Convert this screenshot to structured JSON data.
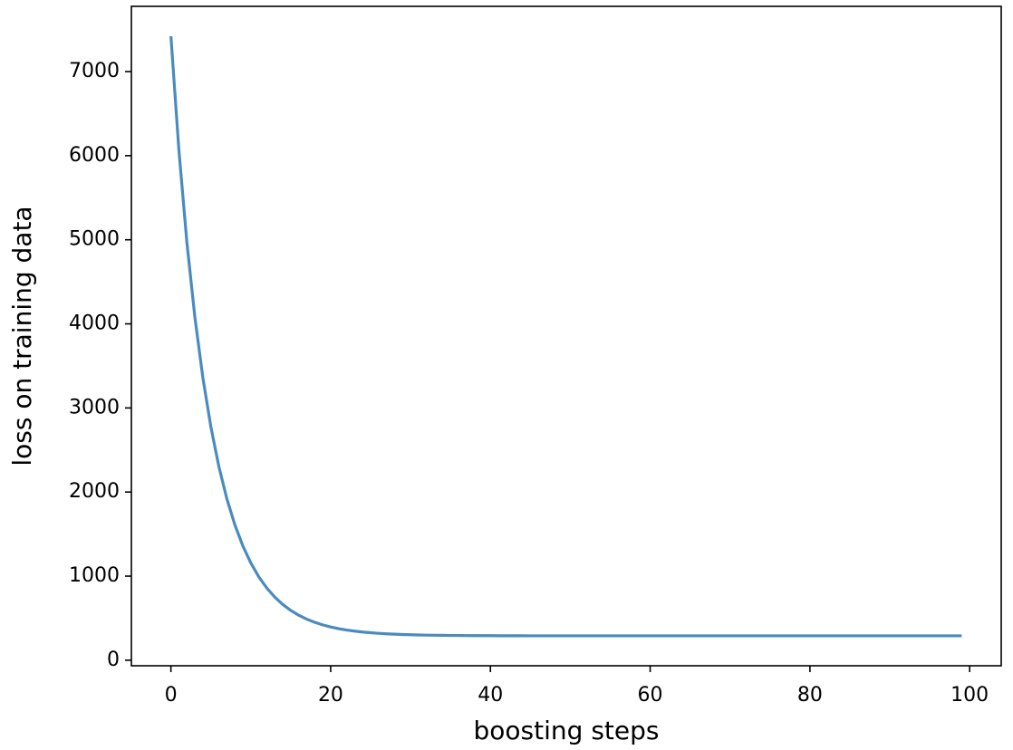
{
  "chart_data": {
    "type": "line",
    "x_label": "boosting steps",
    "y_label": "loss on training data",
    "x": [
      0,
      1,
      2,
      3,
      4,
      5,
      6,
      7,
      8,
      9,
      10,
      11,
      12,
      13,
      14,
      15,
      16,
      17,
      18,
      19,
      20,
      21,
      22,
      23,
      24,
      25,
      26,
      27,
      28,
      29,
      30,
      31,
      32,
      33,
      34,
      35,
      36,
      37,
      38,
      39,
      40,
      41,
      42,
      43,
      44,
      45,
      46,
      47,
      48,
      49,
      50,
      51,
      52,
      53,
      54,
      55,
      56,
      57,
      58,
      59,
      60,
      61,
      62,
      63,
      64,
      65,
      66,
      67,
      68,
      69,
      70,
      71,
      72,
      73,
      74,
      75,
      76,
      77,
      78,
      79,
      80,
      81,
      82,
      83,
      84,
      85,
      86,
      87,
      88,
      89,
      90,
      91,
      92,
      93,
      94,
      95,
      96,
      97,
      98,
      99
    ],
    "series": [
      {
        "name": "loss",
        "color": "#4a8bbf",
        "values": [
          7420,
          6065,
          4968,
          4079,
          3359,
          2776,
          2304,
          1921,
          1611,
          1360,
          1157,
          992,
          859,
          751,
          663,
          592,
          535,
          488,
          451,
          420,
          395,
          375,
          359,
          346,
          335,
          327,
          320,
          314,
          310,
          306,
          303,
          300,
          298,
          297,
          296,
          294,
          294,
          293,
          292,
          292,
          292,
          291,
          291,
          291,
          291,
          290,
          290,
          290,
          290,
          290,
          290,
          290,
          290,
          290,
          290,
          290,
          290,
          290,
          290,
          290,
          290,
          290,
          290,
          290,
          290,
          290,
          290,
          290,
          290,
          290,
          290,
          290,
          290,
          290,
          290,
          290,
          290,
          290,
          290,
          290,
          290,
          290,
          290,
          290,
          290,
          290,
          290,
          290,
          290,
          290,
          290,
          290,
          290,
          290,
          290,
          290,
          290,
          290,
          290,
          290
        ]
      }
    ],
    "xlim": [
      -4.95,
      103.95
    ],
    "xticks": [
      0,
      20,
      40,
      60,
      80,
      100
    ],
    "ylim": [
      -66,
      7776
    ],
    "yticks": [
      0,
      1000,
      2000,
      3000,
      4000,
      5000,
      6000,
      7000
    ],
    "grid": false
  }
}
